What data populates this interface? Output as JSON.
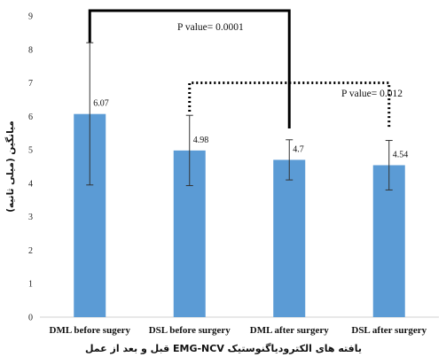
{
  "chart_data": {
    "type": "bar",
    "categories": [
      "DML before sugery",
      "DSL before surgery",
      "DML after surgery",
      "DSL after surgery"
    ],
    "values": [
      6.07,
      4.98,
      4.7,
      4.54
    ],
    "value_labels": [
      "6.07",
      "4.98",
      "4.7",
      "4.54"
    ],
    "error_bars": [
      {
        "low": 3.95,
        "high": 8.2
      },
      {
        "low": 3.93,
        "high": 6.03
      },
      {
        "low": 4.1,
        "high": 5.3
      },
      {
        "low": 3.8,
        "high": 5.28
      }
    ],
    "ylim": [
      0,
      9
    ],
    "yticks": [
      "0",
      "1",
      "2",
      "3",
      "4",
      "5",
      "6",
      "7",
      "8",
      "9"
    ],
    "ylabel": "میانگین (میلی ثانیه)",
    "xlabel": "یافته های الکترودیاگنوستیک EMG-NCV قبل و بعد از عمل",
    "grid": false,
    "bar_color": "#5b9bd5",
    "annotations": [
      {
        "label": "P value= 0.0001",
        "from": 0,
        "to": 2,
        "level": 9.0,
        "style": "solid"
      },
      {
        "label": "P value= 0.012",
        "from": 1,
        "to": 3,
        "level": 7.0,
        "style": "dotted"
      }
    ]
  }
}
